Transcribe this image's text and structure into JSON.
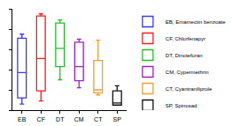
{
  "chart_data": {
    "type": "box",
    "categories": [
      "EB",
      "CF",
      "DT",
      "CM",
      "CT",
      "SP"
    ],
    "series": [
      {
        "name": "EB, Emamectin benzoate",
        "color": "#3a3af0",
        "min": 6,
        "q1": 12,
        "median": 37,
        "q3": 71,
        "max": 75
      },
      {
        "name": "CF, Chlorfenapyr",
        "color": "#f01e1e",
        "min": 9,
        "q1": 19,
        "median": 51,
        "q3": 93,
        "max": 95
      },
      {
        "name": "DT, Dinotefuran",
        "color": "#22c022",
        "min": 30,
        "q1": 43,
        "median": 61,
        "q3": 86,
        "max": 89
      },
      {
        "name": "CM, Cypermethrin",
        "color": "#a21fc4",
        "min": 22,
        "q1": 29,
        "median": 43,
        "q3": 67,
        "max": 70
      },
      {
        "name": "CT, Cyantraniliprole",
        "color": "#f0a030",
        "min": 15,
        "q1": 17,
        "median": 20,
        "q3": 49,
        "max": 69
      },
      {
        "name": "SP, Spinosad",
        "color": "#111111",
        "min": 5,
        "q1": 5,
        "median": 7,
        "q3": 19,
        "max": 24
      }
    ],
    "ylim": [
      0,
      100
    ],
    "yticks": [
      0,
      20,
      40,
      60,
      80,
      100
    ],
    "tick_labels": "x",
    "grid": false,
    "legend": "right"
  }
}
